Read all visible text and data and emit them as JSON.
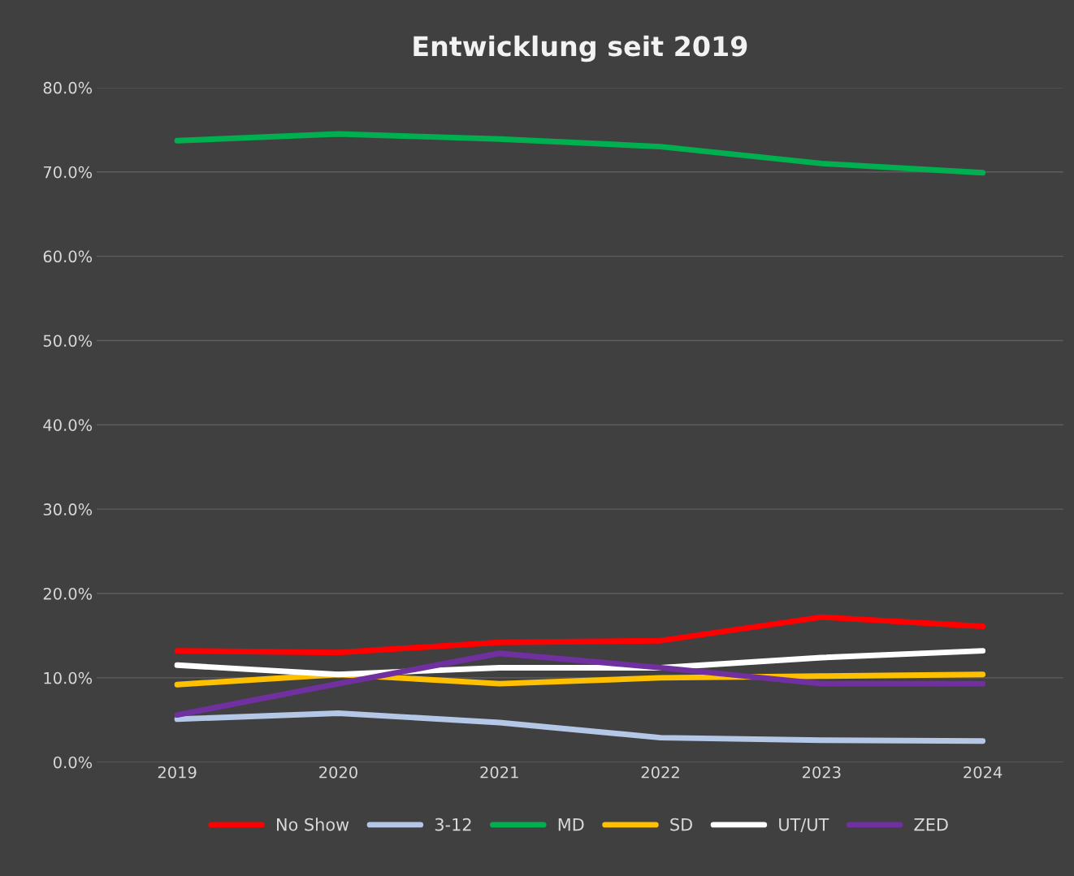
{
  "chart_data": {
    "type": "line",
    "title": "Entwicklung seit 2019",
    "categories": [
      "2019",
      "2020",
      "2021",
      "2022",
      "2023",
      "2024"
    ],
    "series": [
      {
        "name": "No Show",
        "color": "#ff0000",
        "values": [
          13.2,
          13.0,
          14.2,
          14.4,
          17.2,
          16.1
        ]
      },
      {
        "name": "3-12",
        "color": "#b4c7e7",
        "values": [
          5.1,
          5.8,
          4.7,
          2.9,
          2.6,
          2.5
        ]
      },
      {
        "name": "MD",
        "color": "#00b050",
        "values": [
          73.7,
          74.5,
          73.9,
          73.0,
          71.0,
          69.9
        ]
      },
      {
        "name": "SD",
        "color": "#ffc000",
        "values": [
          9.2,
          10.4,
          9.3,
          10.0,
          10.2,
          10.4
        ]
      },
      {
        "name": "UT/UT",
        "color": "#ffffff",
        "values": [
          11.5,
          10.4,
          11.2,
          11.2,
          12.4,
          13.2
        ]
      },
      {
        "name": "ZED",
        "color": "#7030a0",
        "values": [
          5.6,
          9.3,
          12.9,
          11.2,
          9.3,
          9.3
        ]
      }
    ],
    "ylim": [
      0,
      80
    ],
    "yticks": [
      {
        "value": 0,
        "label": "0.0%"
      },
      {
        "value": 10,
        "label": "10.0%"
      },
      {
        "value": 20,
        "label": "20.0%"
      },
      {
        "value": 30,
        "label": "30.0%"
      },
      {
        "value": 40,
        "label": "40.0%"
      },
      {
        "value": 50,
        "label": "50.0%"
      },
      {
        "value": 60,
        "label": "60.0%"
      },
      {
        "value": 70,
        "label": "70.0%"
      },
      {
        "value": 80,
        "label": "80.0%"
      }
    ],
    "grid": "y",
    "legend": "bottom",
    "marker": "none",
    "line_style": "solid"
  }
}
